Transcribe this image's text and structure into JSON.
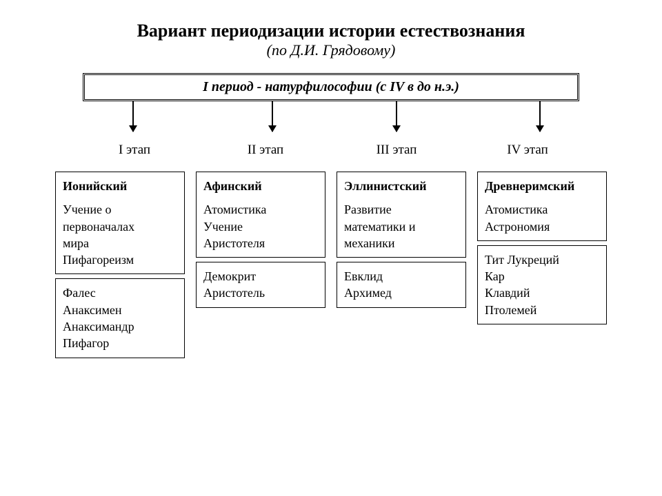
{
  "title": "Вариант периодизации истории естествознания",
  "subtitle": "(по Д.И. Грядовому)",
  "period_box": "I период  -  натурфилософии (с IV в до н.э.)",
  "arrows": {
    "positions_percent": [
      10,
      38,
      63,
      92
    ],
    "color": "#000000"
  },
  "stage_labels": [
    "I этап",
    "II этап",
    "III этап",
    "IV этап"
  ],
  "columns": [
    {
      "head": "Ионийский",
      "body": "Учение о\nпервоначалах\nмира\nПифагореизм",
      "names": "Фалес\nАнаксимен\nАнаксимандр\nПифагор"
    },
    {
      "head": "Афинский",
      "body": "Атомистика\nУчение\nАристотеля",
      "names": "Демокрит\nАристотель"
    },
    {
      "head": "Эллинистский",
      "body": "Развитие\nматематики и\nмеханики",
      "names": "Евклид\nАрхимед"
    },
    {
      "head": "Древнеримский",
      "body": "Атомистика\nАстрономия",
      "names": "Тит Лукреций\nКар\nКлавдий\nПтолемей"
    }
  ],
  "styling": {
    "background": "#ffffff",
    "text_color": "#000000",
    "border_color": "#000000",
    "font_family": "Times New Roman",
    "title_fontsize": 26,
    "subtitle_fontsize": 22,
    "period_box_fontsize": 20,
    "stage_label_fontsize": 19,
    "cell_fontsize": 18
  }
}
